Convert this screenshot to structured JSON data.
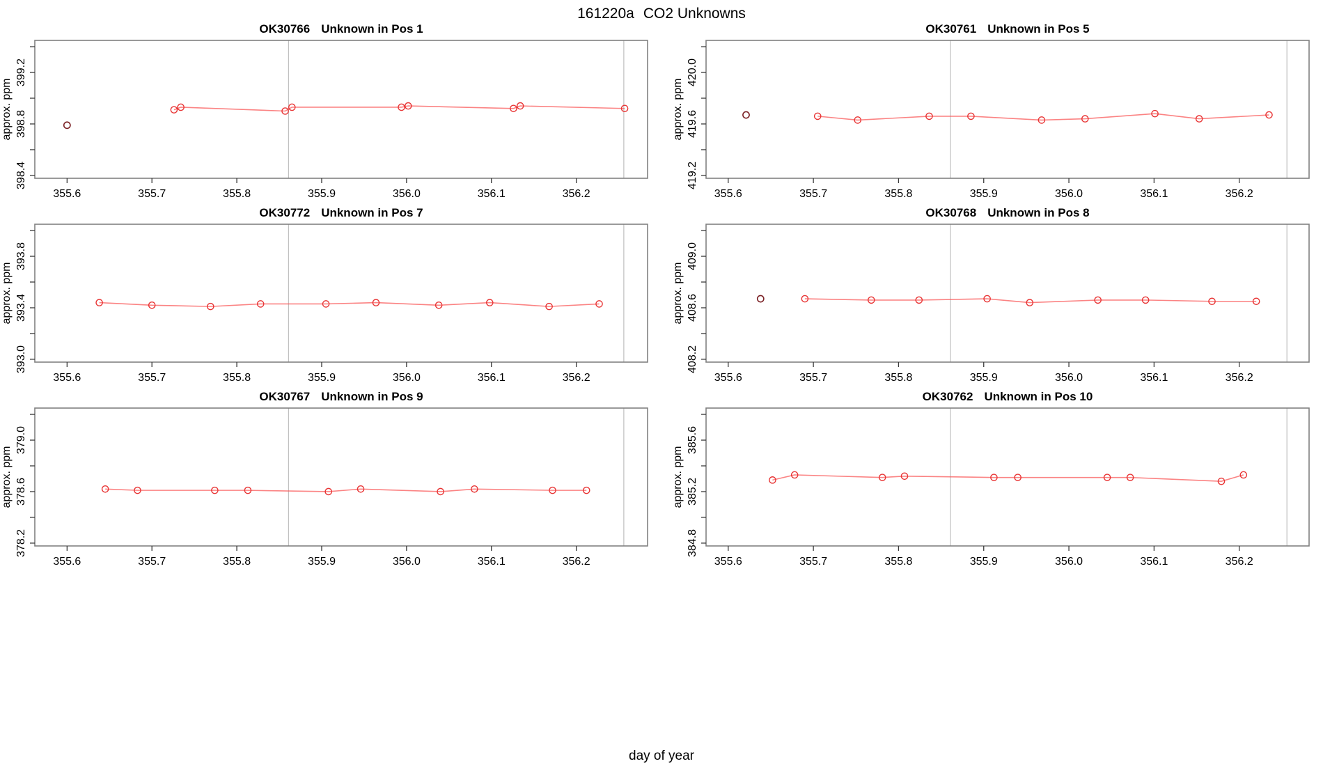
{
  "figure": {
    "title_run": "161220a",
    "title_rest": "CO2 Unknowns",
    "xlabel": "day of year"
  },
  "colors": {
    "point_red": "#e83535",
    "line_red": "#fa5a5a",
    "flagged_dark": "#7b2125",
    "grid_vline": "#bfbfbf",
    "frame": "#808080",
    "tick": "#3a3a3a",
    "text": "#000000"
  },
  "chart_data": [
    {
      "type": "line",
      "title_id": "OK30766",
      "title_desc": "Unknown in Pos 1",
      "ylabel": "approx. ppm",
      "xlim": [
        355.562,
        356.284
      ],
      "ylim": [
        398.378,
        399.449
      ],
      "xticks": [
        355.6,
        355.7,
        355.8,
        355.9,
        356.0,
        356.1,
        356.2
      ],
      "xtick_labels": [
        "355.6",
        "355.7",
        "355.8",
        "355.9",
        "356.0",
        "356.1",
        "356.2"
      ],
      "yticks": [
        398.4,
        398.6,
        398.8,
        399.0,
        399.2,
        399.4
      ],
      "ytick_labels": [
        "398.4",
        "",
        "398.8",
        "",
        "399.2",
        ""
      ],
      "vlines": [
        355.861,
        356.256
      ],
      "series": [
        {
          "name": "measurements",
          "points": [
            [
              355.726,
              398.91
            ],
            [
              355.734,
              398.93
            ],
            [
              355.857,
              398.9
            ],
            [
              355.865,
              398.93
            ],
            [
              355.994,
              398.93
            ],
            [
              356.002,
              398.94
            ],
            [
              356.126,
              398.92
            ],
            [
              356.134,
              398.94
            ],
            [
              356.257,
              398.92
            ]
          ]
        },
        {
          "name": "flagged",
          "points": [
            [
              355.6,
              398.79
            ]
          ]
        }
      ]
    },
    {
      "type": "line",
      "title_id": "OK30761",
      "title_desc": "Unknown in Pos 5",
      "ylabel": "approx. ppm",
      "xlim": [
        355.574,
        356.282
      ],
      "ylim": [
        419.178,
        420.249
      ],
      "xticks": [
        355.6,
        355.7,
        355.8,
        355.9,
        356.0,
        356.1,
        356.2
      ],
      "xtick_labels": [
        "355.6",
        "355.7",
        "355.8",
        "355.9",
        "356.0",
        "356.1",
        "356.2"
      ],
      "yticks": [
        419.2,
        419.4,
        419.6,
        419.8,
        420.0,
        420.2
      ],
      "ytick_labels": [
        "419.2",
        "",
        "419.6",
        "",
        "420.0",
        ""
      ],
      "vlines": [
        355.861,
        356.256
      ],
      "series": [
        {
          "name": "measurements",
          "points": [
            [
              355.705,
              419.66
            ],
            [
              355.752,
              419.63
            ],
            [
              355.836,
              419.66
            ],
            [
              355.885,
              419.66
            ],
            [
              355.968,
              419.63
            ],
            [
              356.019,
              419.64
            ],
            [
              356.101,
              419.68
            ],
            [
              356.153,
              419.64
            ],
            [
              356.235,
              419.67
            ]
          ]
        },
        {
          "name": "flagged",
          "points": [
            [
              355.621,
              419.67
            ]
          ]
        }
      ]
    },
    {
      "type": "line",
      "title_id": "OK30772",
      "title_desc": "Unknown in Pos 7",
      "ylabel": "approx. ppm",
      "xlim": [
        355.562,
        356.284
      ],
      "ylim": [
        392.978,
        394.049
      ],
      "xticks": [
        355.6,
        355.7,
        355.8,
        355.9,
        356.0,
        356.1,
        356.2
      ],
      "xtick_labels": [
        "355.6",
        "355.7",
        "355.8",
        "355.9",
        "356.0",
        "356.1",
        "356.2"
      ],
      "yticks": [
        393.0,
        393.2,
        393.4,
        393.6,
        393.8,
        394.0
      ],
      "ytick_labels": [
        "393.0",
        "",
        "393.4",
        "",
        "393.8",
        ""
      ],
      "vlines": [
        355.861,
        356.256
      ],
      "series": [
        {
          "name": "measurements",
          "points": [
            [
              355.638,
              393.44
            ],
            [
              355.7,
              393.42
            ],
            [
              355.769,
              393.41
            ],
            [
              355.828,
              393.43
            ],
            [
              355.905,
              393.43
            ],
            [
              355.964,
              393.44
            ],
            [
              356.038,
              393.42
            ],
            [
              356.098,
              393.44
            ],
            [
              356.168,
              393.41
            ],
            [
              356.227,
              393.43
            ]
          ]
        },
        {
          "name": "flagged",
          "points": []
        }
      ]
    },
    {
      "type": "line",
      "title_id": "OK30768",
      "title_desc": "Unknown in Pos 8",
      "ylabel": "approx. ppm",
      "xlim": [
        355.574,
        356.282
      ],
      "ylim": [
        408.178,
        409.249
      ],
      "xticks": [
        355.6,
        355.7,
        355.8,
        355.9,
        356.0,
        356.1,
        356.2
      ],
      "xtick_labels": [
        "355.6",
        "355.7",
        "355.8",
        "355.9",
        "356.0",
        "356.1",
        "356.2"
      ],
      "yticks": [
        408.2,
        408.4,
        408.6,
        408.8,
        409.0,
        409.2
      ],
      "ytick_labels": [
        "408.2",
        "",
        "408.6",
        "",
        "409.0",
        ""
      ],
      "vlines": [
        355.861,
        356.256
      ],
      "series": [
        {
          "name": "measurements",
          "points": [
            [
              355.69,
              408.67
            ],
            [
              355.768,
              408.66
            ],
            [
              355.824,
              408.66
            ],
            [
              355.904,
              408.67
            ],
            [
              355.954,
              408.64
            ],
            [
              356.034,
              408.66
            ],
            [
              356.09,
              408.66
            ],
            [
              356.168,
              408.65
            ],
            [
              356.22,
              408.65
            ]
          ]
        },
        {
          "name": "flagged",
          "points": [
            [
              355.638,
              408.67
            ]
          ]
        }
      ]
    },
    {
      "type": "line",
      "title_id": "OK30767",
      "title_desc": "Unknown in Pos 9",
      "ylabel": "approx. ppm",
      "xlim": [
        355.562,
        356.284
      ],
      "ylim": [
        378.178,
        379.249
      ],
      "xticks": [
        355.6,
        355.7,
        355.8,
        355.9,
        356.0,
        356.1,
        356.2
      ],
      "xtick_labels": [
        "355.6",
        "355.7",
        "355.8",
        "355.9",
        "356.0",
        "356.1",
        "356.2"
      ],
      "yticks": [
        378.2,
        378.4,
        378.6,
        378.8,
        379.0,
        379.2
      ],
      "ytick_labels": [
        "378.2",
        "",
        "378.6",
        "",
        "379.0",
        ""
      ],
      "vlines": [
        355.861,
        356.256
      ],
      "series": [
        {
          "name": "measurements",
          "points": [
            [
              355.645,
              378.62
            ],
            [
              355.683,
              378.61
            ],
            [
              355.774,
              378.61
            ],
            [
              355.813,
              378.61
            ],
            [
              355.908,
              378.6
            ],
            [
              355.946,
              378.62
            ],
            [
              356.04,
              378.6
            ],
            [
              356.08,
              378.62
            ],
            [
              356.172,
              378.61
            ],
            [
              356.212,
              378.61
            ]
          ]
        },
        {
          "name": "flagged",
          "points": []
        }
      ]
    },
    {
      "type": "line",
      "title_id": "OK30762",
      "title_desc": "Unknown in Pos 10",
      "ylabel": "approx. ppm",
      "xlim": [
        355.574,
        356.282
      ],
      "ylim": [
        384.778,
        385.849
      ],
      "xticks": [
        355.6,
        355.7,
        355.8,
        355.9,
        356.0,
        356.1,
        356.2
      ],
      "xtick_labels": [
        "355.6",
        "355.7",
        "355.8",
        "355.9",
        "356.0",
        "356.1",
        "356.2"
      ],
      "yticks": [
        384.8,
        385.0,
        385.2,
        385.4,
        385.6,
        385.8
      ],
      "ytick_labels": [
        "384.8",
        "",
        "385.2",
        "",
        "385.6",
        ""
      ],
      "vlines": [
        355.861,
        356.256
      ],
      "series": [
        {
          "name": "measurements",
          "points": [
            [
              355.652,
              385.29
            ],
            [
              355.678,
              385.33
            ],
            [
              355.781,
              385.31
            ],
            [
              355.807,
              385.32
            ],
            [
              355.912,
              385.31
            ],
            [
              355.94,
              385.31
            ],
            [
              356.045,
              385.31
            ],
            [
              356.072,
              385.31
            ],
            [
              356.179,
              385.28
            ],
            [
              356.205,
              385.33
            ]
          ]
        },
        {
          "name": "flagged",
          "points": []
        }
      ]
    }
  ]
}
